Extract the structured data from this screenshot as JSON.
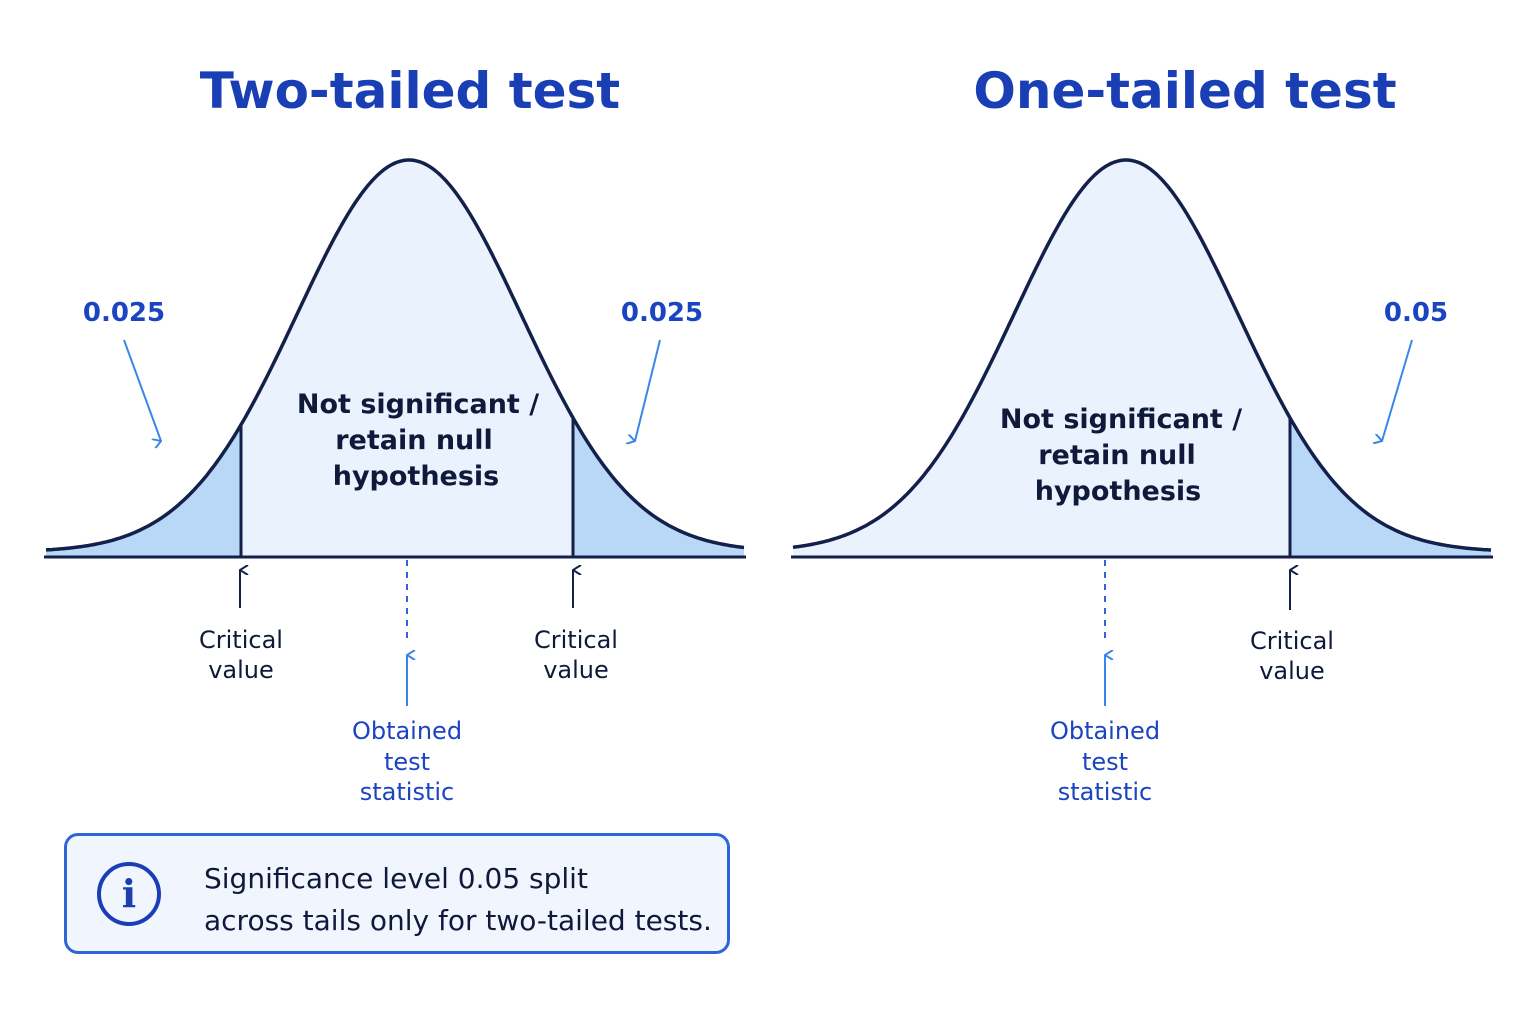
{
  "panels": [
    {
      "id": "two-tailed",
      "title": "Two-tailed test",
      "tail_labels": [
        "0.025",
        "0.025"
      ],
      "region_label": [
        "Not significant /",
        "retain null",
        "hypothesis"
      ],
      "critical_labels": [
        [
          "Critical",
          "value"
        ],
        [
          "Critical",
          "value"
        ]
      ],
      "obtained_label": [
        "Obtained",
        "test",
        "statistic"
      ],
      "rejection_tails": [
        "left",
        "right"
      ]
    },
    {
      "id": "one-tailed",
      "title": "One-tailed test",
      "tail_labels": [
        "0.05"
      ],
      "region_label": [
        "Not significant /",
        "retain null",
        "hypothesis"
      ],
      "critical_labels": [
        [
          "Critical",
          "value"
        ]
      ],
      "obtained_label": [
        "Obtained",
        "test",
        "statistic"
      ],
      "rejection_tails": [
        "right"
      ]
    }
  ],
  "note": {
    "icon": "info-icon",
    "glyph": "i",
    "lines": [
      "Significance level 0.05 split",
      "across tails only for two-tailed tests."
    ]
  },
  "colors": {
    "curve": "#13204a",
    "body_fill": "#e9f2fd",
    "tail_fill": "#b9d7f7",
    "accent": "#1a44c2",
    "arrow_blue": "#3a86e8"
  }
}
